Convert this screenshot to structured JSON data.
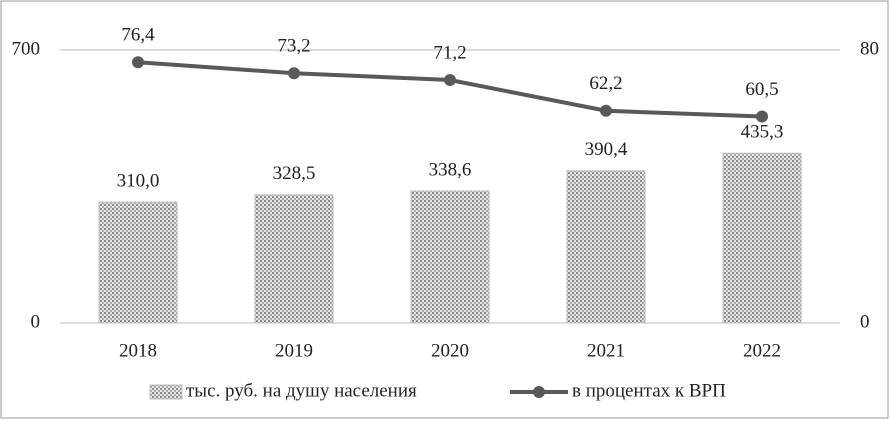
{
  "chart_data": {
    "type": "bar_line",
    "categories": [
      "2018",
      "2019",
      "2020",
      "2021",
      "2022"
    ],
    "series": [
      {
        "name": "тыс. руб. на душу населения",
        "type": "bar",
        "color": "#bdbdbd",
        "axis": "y",
        "values": [
          310.0,
          328.5,
          338.6,
          390.4,
          435.3
        ],
        "value_labels": [
          "310,0",
          "328,5",
          "338,6",
          "390,4",
          "435,3"
        ]
      },
      {
        "name": "в процентах к ВРП",
        "type": "line",
        "color": "#595959",
        "axis": "y2",
        "values": [
          76.4,
          73.2,
          71.2,
          62.2,
          60.5
        ],
        "value_labels": [
          "76,4",
          "73,2",
          "71,2",
          "62,2",
          "60,5"
        ]
      }
    ],
    "ylim": [
      0,
      700
    ],
    "yticks": [
      0,
      700
    ],
    "y2lim": [
      0,
      80
    ],
    "y2ticks": [
      0,
      80
    ],
    "grid": true,
    "legend": "bottom"
  }
}
